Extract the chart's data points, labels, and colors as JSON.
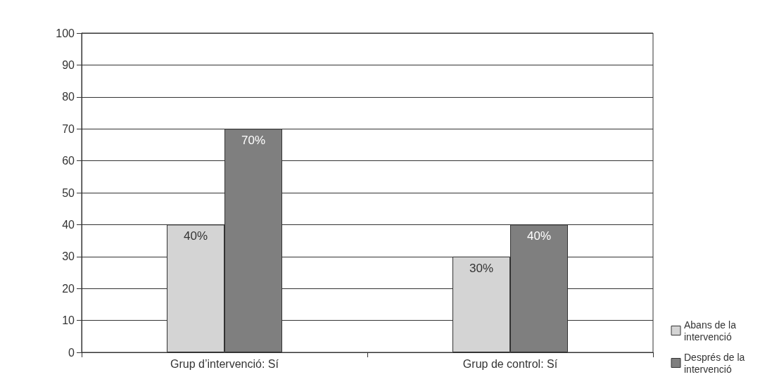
{
  "chart_data": {
    "type": "bar",
    "categories": [
      "Grup d’intervenció: Sí",
      "Grup de control: Sí"
    ],
    "series": [
      {
        "name": "Abans de la intervenció",
        "color": "#d4d4d4",
        "values": [
          40,
          30
        ],
        "value_labels": [
          "40%",
          "30%"
        ]
      },
      {
        "name": "Després de la intervenció",
        "color": "#7f7f7f",
        "values": [
          70,
          40
        ],
        "value_labels": [
          "70%",
          "40%"
        ]
      }
    ],
    "ylim": [
      0,
      100
    ],
    "yticks": [
      0,
      10,
      20,
      30,
      40,
      50,
      60,
      70,
      80,
      90,
      100
    ],
    "grid": "y",
    "legend": "bottom right"
  }
}
